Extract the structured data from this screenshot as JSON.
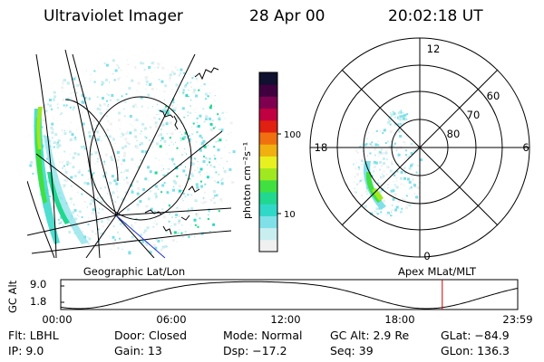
{
  "header": {
    "instrument": "Ultraviolet Imager",
    "date": "28 Apr 00",
    "time": "20:02:18 UT"
  },
  "colorbar": {
    "unit_label": "photon cm⁻²s⁻¹",
    "ticks": [
      "100",
      "10"
    ],
    "colors": [
      "#f0f0f0",
      "#c8eef0",
      "#80e0e8",
      "#30d8c8",
      "#20d890",
      "#40e040",
      "#a0e820",
      "#e8f020",
      "#f0b010",
      "#f07010",
      "#e02010",
      "#c00040",
      "#800050",
      "#400040",
      "#101030"
    ]
  },
  "left_panel": {
    "label": "Geographic Lat/Lon"
  },
  "right_panel": {
    "label": "Apex MLat/MLT",
    "mlt_labels": {
      "top": "12",
      "left": "18",
      "right": "6",
      "bottom": "0"
    },
    "lat_labels": [
      "60",
      "70",
      "80"
    ]
  },
  "altitude_plot": {
    "ylabel": "GC Alt",
    "yticks": [
      "9.0",
      "1.8"
    ],
    "xticks": [
      "00:00",
      "06:00",
      "12:00",
      "18:00",
      "23:59"
    ],
    "marker_time_fraction": 0.835,
    "marker_color": "#cc0000"
  },
  "footer": {
    "row1": {
      "flt": "Flt: LBHL",
      "door": "Door: Closed",
      "mode": "Mode: Normal",
      "gcalt": "GC Alt: 2.9 Re",
      "glat": "GLat: −84.9"
    },
    "row2": {
      "ip": "IP: 9.0",
      "gain": "Gain: 13",
      "dsp": "Dsp: −17.2",
      "seq": "Seq: 39",
      "glon": "GLon: 136.3"
    }
  }
}
